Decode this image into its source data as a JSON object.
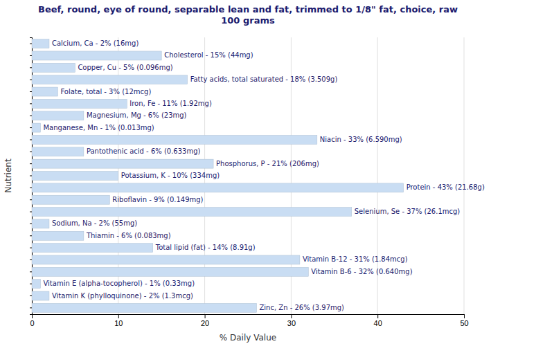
{
  "chart_data": {
    "type": "bar",
    "orientation": "horizontal",
    "title": "Beef, round, eye of round, separable lean and fat, trimmed to 1/8\" fat, choice, raw\n100 grams",
    "xlabel": "% Daily Value",
    "ylabel": "Nutrient",
    "categories": [
      "Calcium, Ca - 2% (16mg)",
      "Cholesterol - 15% (44mg)",
      "Copper, Cu - 5% (0.096mg)",
      "Fatty acids, total saturated - 18% (3.509g)",
      "Folate, total - 3% (12mcg)",
      "Iron, Fe - 11% (1.92mg)",
      "Magnesium, Mg - 6% (23mg)",
      "Manganese, Mn - 1% (0.013mg)",
      "Niacin - 33% (6.590mg)",
      "Pantothenic acid - 6% (0.633mg)",
      "Phosphorus, P - 21% (206mg)",
      "Potassium, K - 10% (334mg)",
      "Protein - 43% (21.68g)",
      "Riboflavin - 9% (0.149mg)",
      "Selenium, Se - 37% (26.1mcg)",
      "Sodium, Na - 2% (55mg)",
      "Thiamin - 6% (0.083mg)",
      "Total lipid (fat) - 14% (8.91g)",
      "Vitamin B-12 - 31% (1.84mcg)",
      "Vitamin B-6 - 32% (0.640mg)",
      "Vitamin E (alpha-tocopherol) - 1% (0.33mg)",
      "Vitamin K (phylloquinone) - 2% (1.3mcg)",
      "Zinc, Zn - 26% (3.97mg)"
    ],
    "values": [
      2,
      15,
      5,
      18,
      3,
      11,
      6,
      1,
      33,
      6,
      21,
      10,
      43,
      9,
      37,
      2,
      6,
      14,
      31,
      32,
      1,
      2,
      26
    ],
    "color": "#c9ddf3",
    "xlim": [
      0,
      50
    ],
    "xticks": [
      0,
      10,
      20,
      30,
      40,
      50
    ],
    "grid": true
  }
}
